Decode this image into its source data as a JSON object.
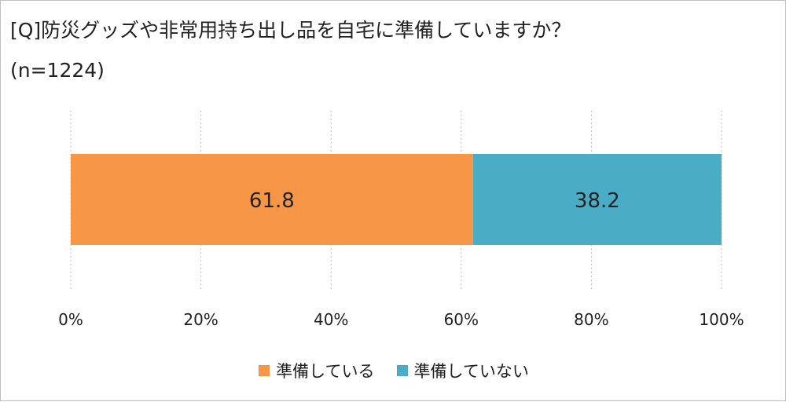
{
  "chart_data": {
    "type": "bar",
    "orientation": "horizontal",
    "stacked": true,
    "title": "[Q]防災グッズや非常用持ち出し品を自宅に準備していますか？",
    "subtitle": "(n=1224)",
    "categories": [
      ""
    ],
    "series": [
      {
        "name": "準備している",
        "values": [
          61.8
        ],
        "color": "#F79646"
      },
      {
        "name": "準備していない",
        "values": [
          38.2
        ],
        "color": "#4BACC6"
      }
    ],
    "xlim": [
      0,
      100
    ],
    "x_ticks": [
      "0%",
      "20%",
      "40%",
      "60%",
      "80%",
      "100%"
    ],
    "grid": "vertical dotted",
    "legend_position": "bottom"
  }
}
